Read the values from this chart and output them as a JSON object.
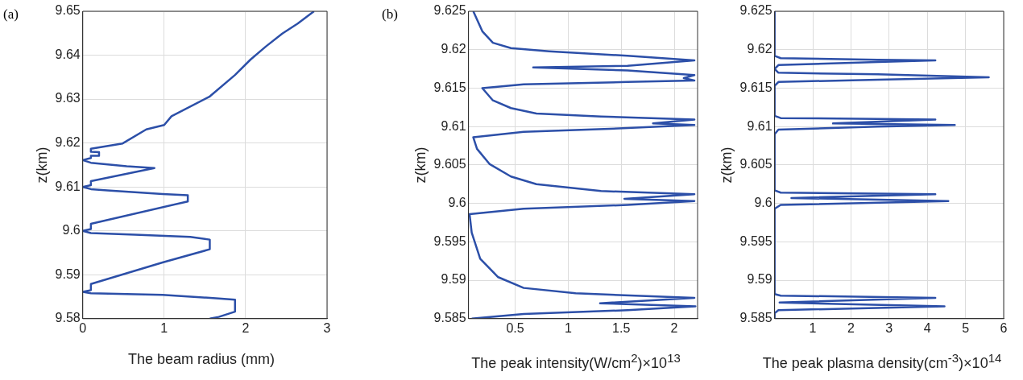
{
  "chart_data": [
    {
      "type": "line",
      "annotations": [
        "(a)"
      ],
      "xlabel": "The beam radius (mm)",
      "ylabel": "z(km)",
      "xlim": [
        0,
        3
      ],
      "xticks": [
        0,
        1,
        2,
        3
      ],
      "ylim": [
        9.58,
        9.65
      ],
      "yticks": [
        9.58,
        9.59,
        9.6,
        9.61,
        9.62,
        9.63,
        9.64,
        9.65
      ],
      "grid": true,
      "marker": "none",
      "line_style": "solid",
      "series": [
        {
          "color": "#2c4fa8",
          "x": [
            1.56,
            1.67,
            1.87,
            1.87,
            1.67,
            0.98,
            0.1,
            0,
            0.1,
            0.1,
            0.98,
            1.56,
            1.56,
            1.32,
            0.64,
            0.1,
            0,
            0.1,
            0.1,
            1.29,
            1.29,
            0.98,
            0.3,
            0.1,
            0,
            0.1,
            0.1,
            0.88,
            0.54,
            0.1,
            0,
            0.1,
            0.1,
            0.2,
            0.2,
            0.1,
            0.1,
            0.49,
            0.78,
            1.0,
            1.09,
            1.56,
            1.87,
            2.06,
            2.25,
            2.45,
            2.64,
            2.84
          ],
          "values": [
            9.58,
            9.5804,
            9.5816,
            9.5843,
            9.5846,
            9.5854,
            9.5858,
            9.5861,
            9.5865,
            9.5879,
            9.5928,
            9.5958,
            9.598,
            9.5986,
            9.5991,
            9.5995,
            9.6,
            9.6004,
            9.6016,
            9.6067,
            9.6081,
            9.6084,
            9.6092,
            9.6095,
            9.61,
            9.6104,
            9.6113,
            9.6143,
            9.6147,
            9.6155,
            9.6161,
            9.6166,
            9.6171,
            9.6171,
            9.6179,
            9.618,
            9.6187,
            9.6199,
            9.6231,
            9.6241,
            9.6261,
            9.6306,
            9.6355,
            9.639,
            9.642,
            9.6449,
            9.6472,
            9.65
          ]
        }
      ]
    },
    {
      "type": "line",
      "annotations": [
        "(b)"
      ],
      "xlabel": "The peak intensity(W/cm$^{2}$)×10$^{13}$",
      "ylabel": "z(km)",
      "xlim": [
        0.06,
        2.22
      ],
      "xticks": [
        0.5,
        1,
        1.5,
        2
      ],
      "ylim": [
        9.585,
        9.625
      ],
      "yticks": [
        9.585,
        9.59,
        9.595,
        9.6,
        9.605,
        9.61,
        9.615,
        9.62,
        9.625
      ],
      "grid": true,
      "marker": "none",
      "line_style": "solid",
      "series": [
        {
          "color": "#2c4fa8",
          "x": [
            0.105,
            0.19,
            0.29,
            0.46,
            0.82,
            1.56,
            2.19,
            1.56,
            0.67,
            1.56,
            2.19,
            2.09,
            2.19,
            1.56,
            0.58,
            0.19,
            0.29,
            0.46,
            0.7,
            1.31,
            2.19,
            1.8,
            2.19,
            1.56,
            0.58,
            0.105,
            0.14,
            0.26,
            0.46,
            0.7,
            1.31,
            2.19,
            1.53,
            2.19,
            1.56,
            0.58,
            0.07,
            0.09,
            0.17,
            0.34,
            0.58,
            1.07,
            2.19,
            1.3,
            2.2,
            1.56,
            0.58,
            0.09
          ],
          "values": [
            9.625,
            9.6224,
            9.6209,
            9.6202,
            9.6198,
            9.6192,
            9.6186,
            9.6179,
            9.6177,
            9.6173,
            9.6167,
            9.6163,
            9.616,
            9.6158,
            9.6155,
            9.615,
            9.6134,
            9.6124,
            9.6117,
            9.6113,
            9.6109,
            9.6104,
            9.6102,
            9.6098,
            9.6093,
            9.6086,
            9.6071,
            9.6051,
            9.6035,
            9.6025,
            9.6016,
            9.6012,
            9.6006,
            9.6003,
            9.5998,
            9.5993,
            9.5986,
            9.5962,
            9.5928,
            9.5904,
            9.589,
            9.5883,
            9.5877,
            9.587,
            9.5866,
            9.5861,
            9.5856,
            9.585
          ]
        }
      ]
    },
    {
      "type": "line",
      "xlabel": "The peak plasma density(cm$^{-3}$)×10$^{14}$",
      "ylabel": "z(km)",
      "xlim": [
        0,
        6
      ],
      "xticks": [
        1,
        2,
        3,
        4,
        5,
        6
      ],
      "ylim": [
        9.585,
        9.625
      ],
      "yticks": [
        9.585,
        9.59,
        9.595,
        9.6,
        9.605,
        9.61,
        9.615,
        9.62,
        9.625
      ],
      "grid": true,
      "marker": "none",
      "line_style": "solid",
      "series": [
        {
          "color": "#2c4fa8",
          "x": [
            0,
            0,
            0.16,
            2.7,
            4.21,
            2.7,
            0.1,
            0,
            0.1,
            2.7,
            5.61,
            2.7,
            0.1,
            0,
            0,
            0.16,
            2.7,
            4.21,
            1.53,
            4.72,
            2.7,
            0.1,
            0,
            0,
            0.16,
            4.21,
            0.44,
            4.55,
            0.16,
            0,
            0,
            0.16,
            4.21,
            0.13,
            4.45,
            0.1,
            0,
            0
          ],
          "values": [
            9.625,
            9.6192,
            9.6189,
            9.6187,
            9.6186,
            9.6184,
            9.618,
            9.6175,
            9.617,
            9.6168,
            9.6164,
            9.6161,
            9.6158,
            9.6153,
            9.6114,
            9.6111,
            9.611,
            9.6109,
            9.6104,
            9.6102,
            9.61,
            9.6096,
            9.609,
            9.6017,
            9.6014,
            9.6012,
            9.6007,
            9.6003,
            9.5998,
            9.5993,
            9.5882,
            9.588,
            9.5877,
            9.5871,
            9.5866,
            9.5861,
            9.5857,
            9.585
          ]
        }
      ]
    }
  ]
}
